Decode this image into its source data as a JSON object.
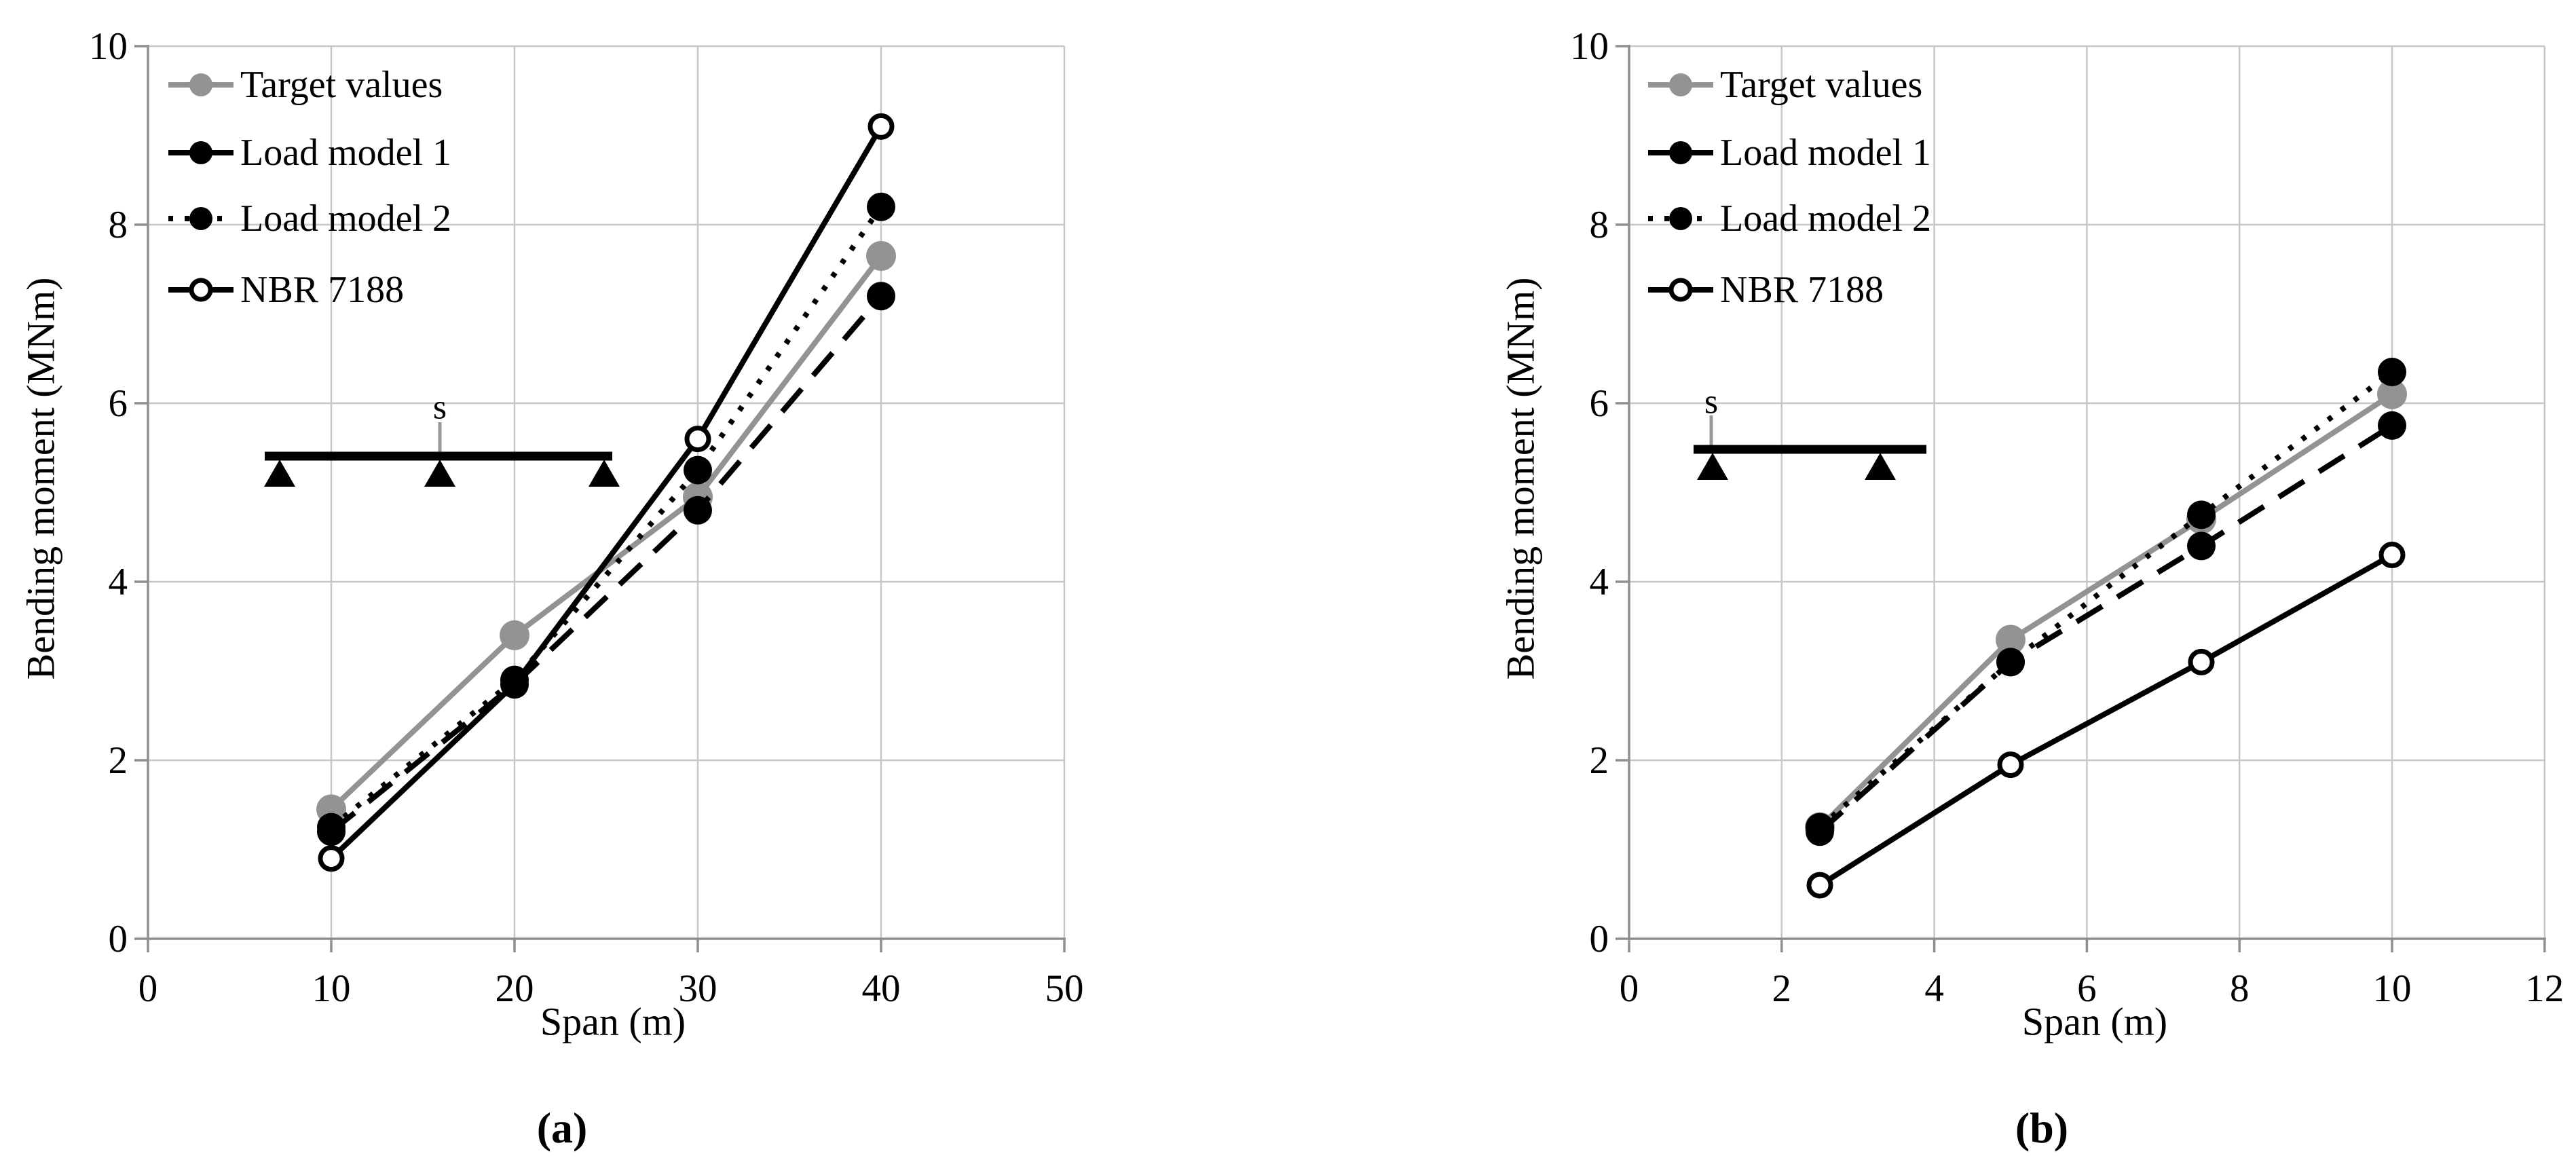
{
  "figure": {
    "background": "#ffffff",
    "text_color": "#000000",
    "gridline_color": "#c7c7c7",
    "axis_color": "#8f8f8f"
  },
  "chart_data": [
    {
      "id": "a",
      "type": "line",
      "caption": "(a)",
      "xlabel": "Span (m)",
      "ylabel": "Bending moment (MNm)",
      "xlim": [
        0,
        50
      ],
      "ylim": [
        0,
        10
      ],
      "x_ticks": [
        0,
        10,
        20,
        30,
        40,
        50
      ],
      "y_ticks": [
        0,
        2,
        4,
        6,
        8,
        10
      ],
      "grid": true,
      "legend_position": "top-left-inside",
      "x": [
        10,
        20,
        30,
        40
      ],
      "series": [
        {
          "name": "Target values",
          "values": [
            1.45,
            3.4,
            4.95,
            7.65
          ],
          "color": "#939393",
          "line": "solid",
          "marker": "filled",
          "legend_line": "solid"
        },
        {
          "name": "Load model 1",
          "values": [
            1.2,
            2.85,
            4.8,
            7.2
          ],
          "color": "#000000",
          "line": "dashed",
          "marker": "filled",
          "legend_line": "solid"
        },
        {
          "name": "Load model 2",
          "values": [
            1.25,
            2.9,
            5.25,
            8.2
          ],
          "color": "#000000",
          "line": "dotted",
          "marker": "filled",
          "legend_line": "dotted"
        },
        {
          "name": "NBR 7188",
          "values": [
            0.9,
            2.85,
            5.6,
            9.1
          ],
          "color": "#000000",
          "line": "solid",
          "marker": "open",
          "legend_line": "solid"
        }
      ],
      "schematic": {
        "label": "s",
        "description": "two-span continuous beam on three supports",
        "supports": 3
      }
    },
    {
      "id": "b",
      "type": "line",
      "caption": "(b)",
      "xlabel": "Span (m)",
      "ylabel": "Bending moment (MNm)",
      "xlim": [
        0,
        12
      ],
      "ylim": [
        0,
        10
      ],
      "x_ticks": [
        0,
        2,
        4,
        6,
        8,
        10,
        12
      ],
      "y_ticks": [
        0,
        2,
        4,
        6,
        8,
        10
      ],
      "grid": true,
      "legend_position": "top-left-inside",
      "x": [
        2.5,
        5,
        7.5,
        10
      ],
      "series": [
        {
          "name": "Target values",
          "values": [
            1.25,
            3.35,
            4.7,
            6.1
          ],
          "color": "#939393",
          "line": "solid",
          "marker": "filled",
          "legend_line": "solid"
        },
        {
          "name": "Load model 1",
          "values": [
            1.2,
            3.1,
            4.4,
            5.75
          ],
          "color": "#000000",
          "line": "dashed",
          "marker": "filled",
          "legend_line": "solid"
        },
        {
          "name": "Load model 2",
          "values": [
            1.25,
            3.1,
            4.75,
            6.35
          ],
          "color": "#000000",
          "line": "dotted",
          "marker": "filled",
          "legend_line": "dotted"
        },
        {
          "name": "NBR 7188",
          "values": [
            0.6,
            1.95,
            3.1,
            4.3
          ],
          "color": "#000000",
          "line": "solid",
          "marker": "open",
          "legend_line": "solid"
        }
      ],
      "schematic": {
        "label": "s",
        "description": "simply supported beam on two supports",
        "supports": 2
      }
    }
  ]
}
